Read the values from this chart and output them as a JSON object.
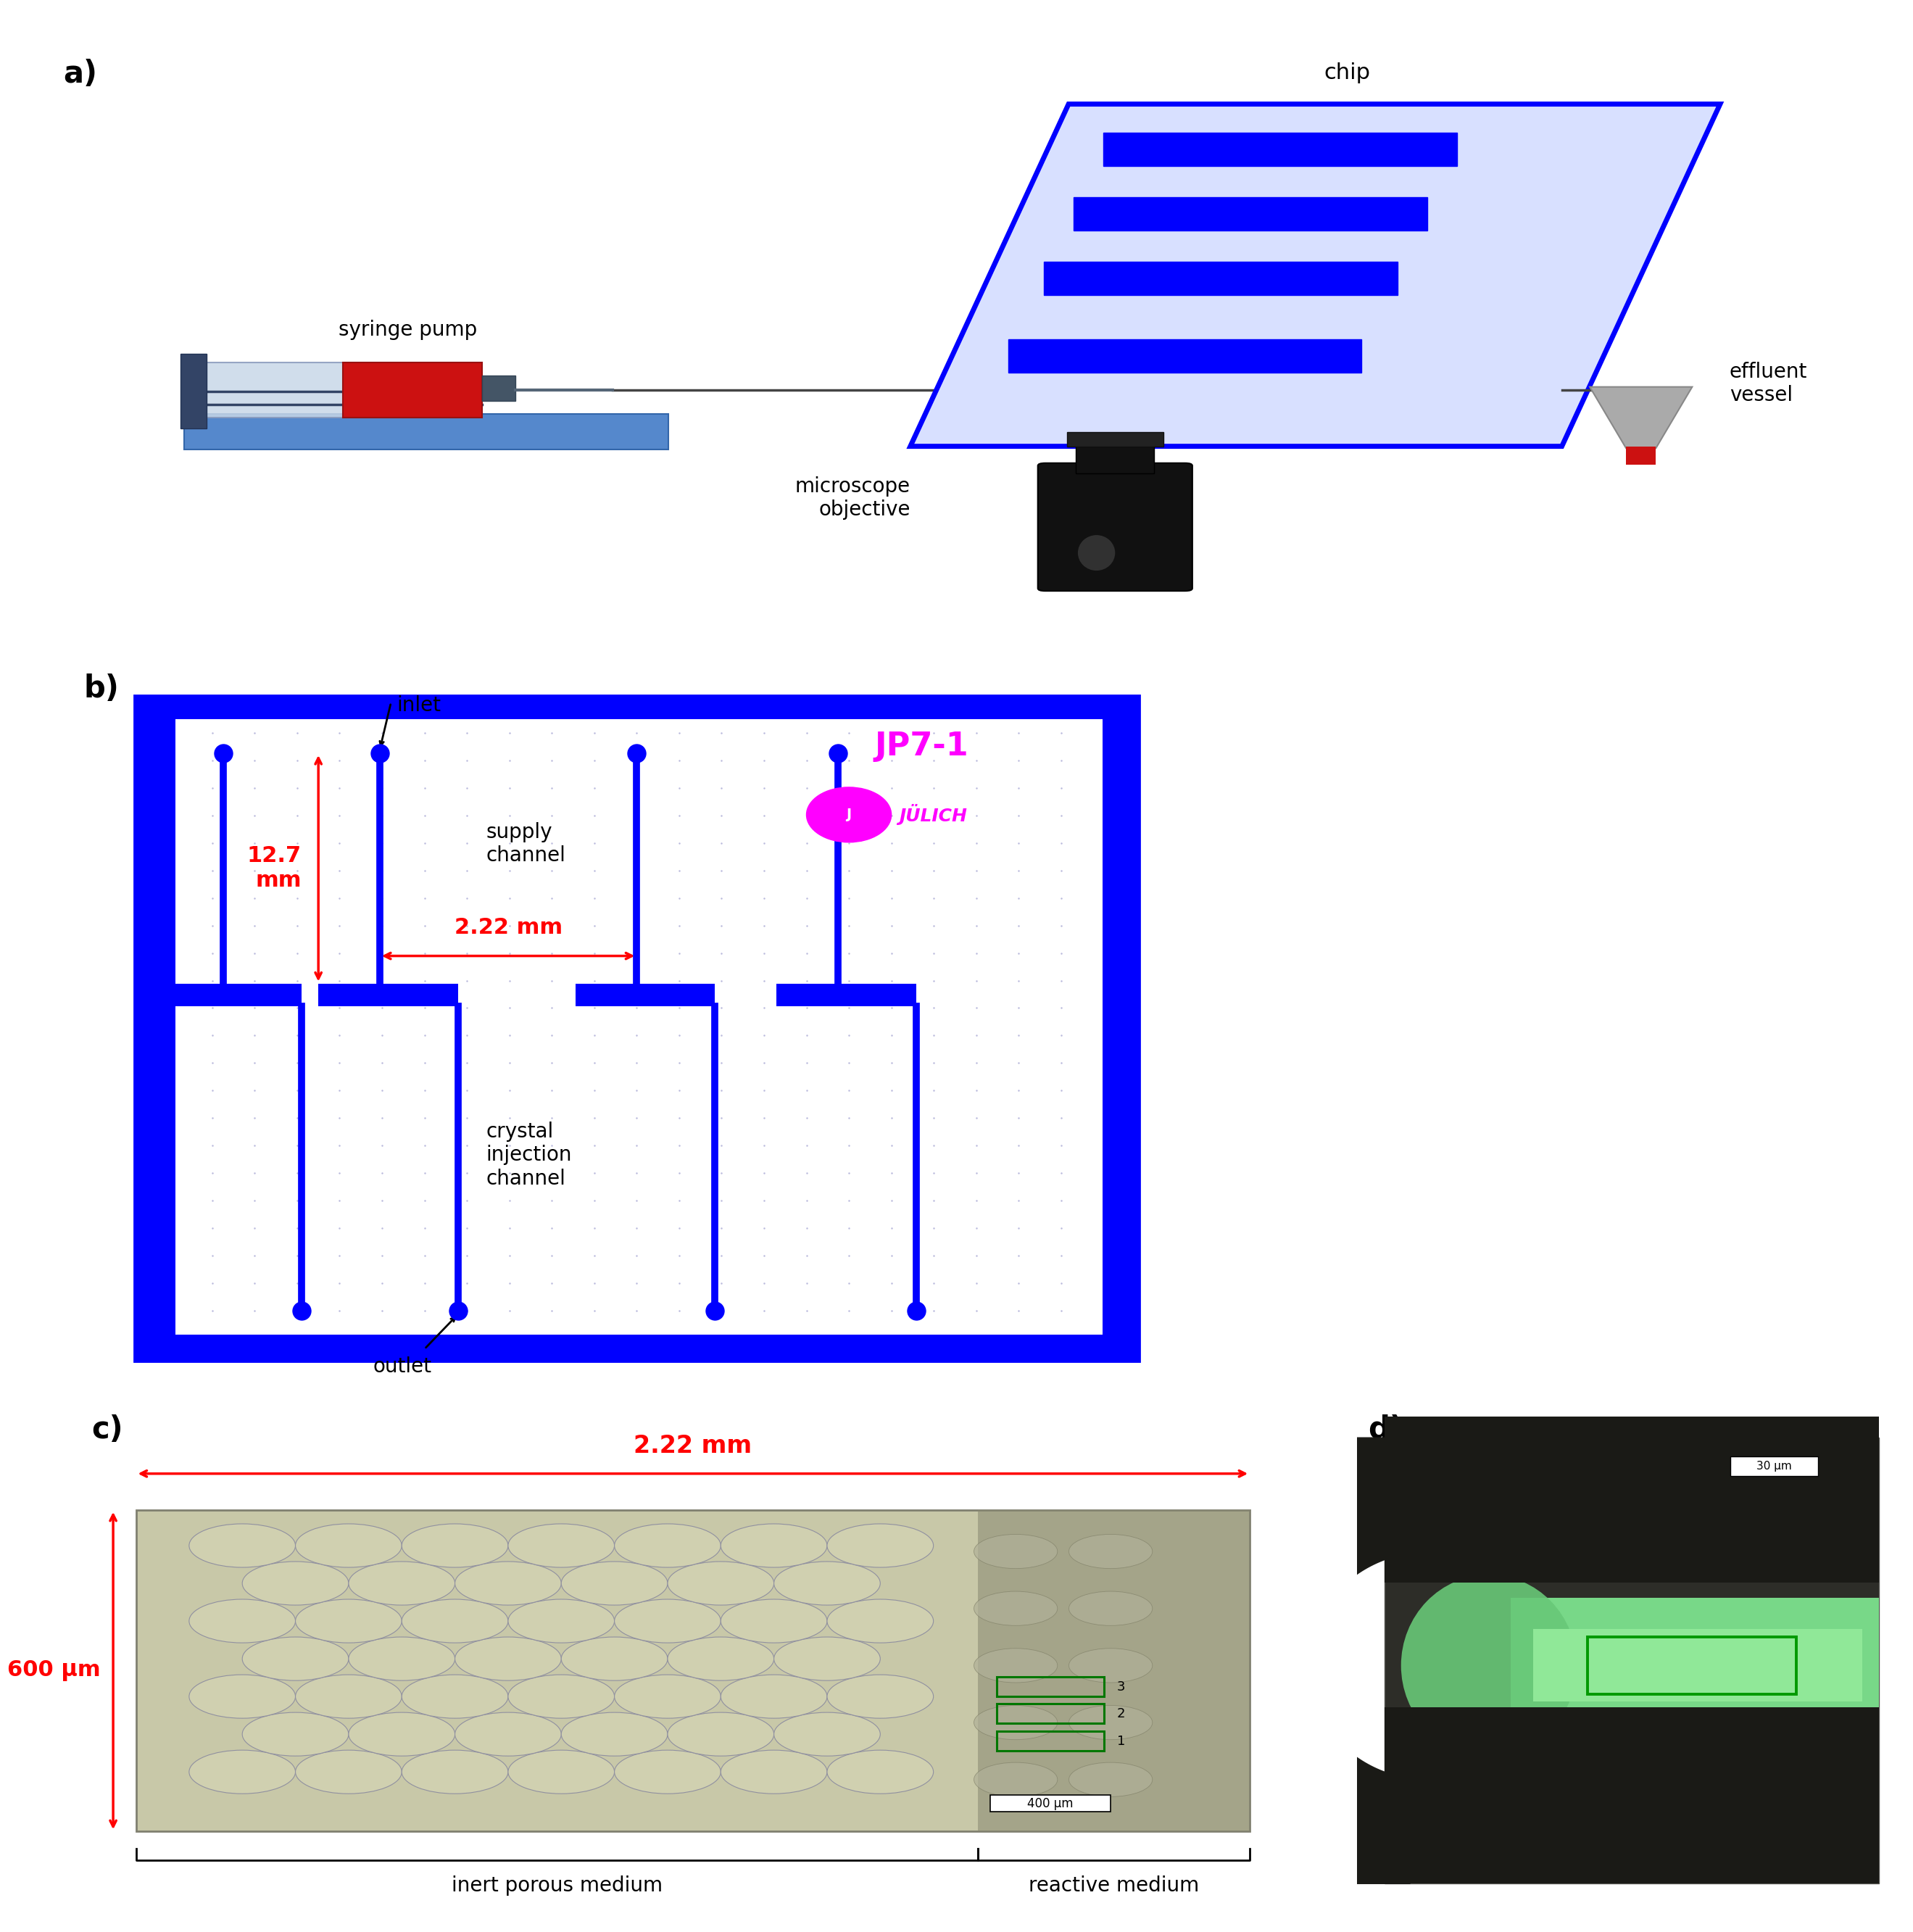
{
  "fig_width": 25.68,
  "fig_height": 26.99,
  "bg_color": "#ffffff",
  "blue": "#0000FF",
  "red": "#FF0000",
  "magenta": "#FF00FF",
  "label_a": "a)",
  "label_b": "b)",
  "label_c": "c)",
  "label_d": "d)",
  "chip_label": "chip",
  "syringe_pump_label": "syringe pump",
  "effluent_label": "effluent\nvessel",
  "microscope_label": "microscope\nobjective",
  "jp71_label": "JP7-1",
  "julich_label": "JÜLICH",
  "inlet_label": "inlet",
  "outlet_label": "outlet",
  "supply_channel_label": "supply\nchannel",
  "crystal_injection_label": "crystal\ninjection\nchannel",
  "dim_127": "12.7\nmm",
  "dim_222_b": "2.22 mm",
  "dim_222_c": "2.22 mm",
  "dim_600": "600 μm",
  "dim_400": "400 μm",
  "dim_30": "30 μm",
  "inert_label": "inert porous medium",
  "reactive_label": "reactive medium"
}
